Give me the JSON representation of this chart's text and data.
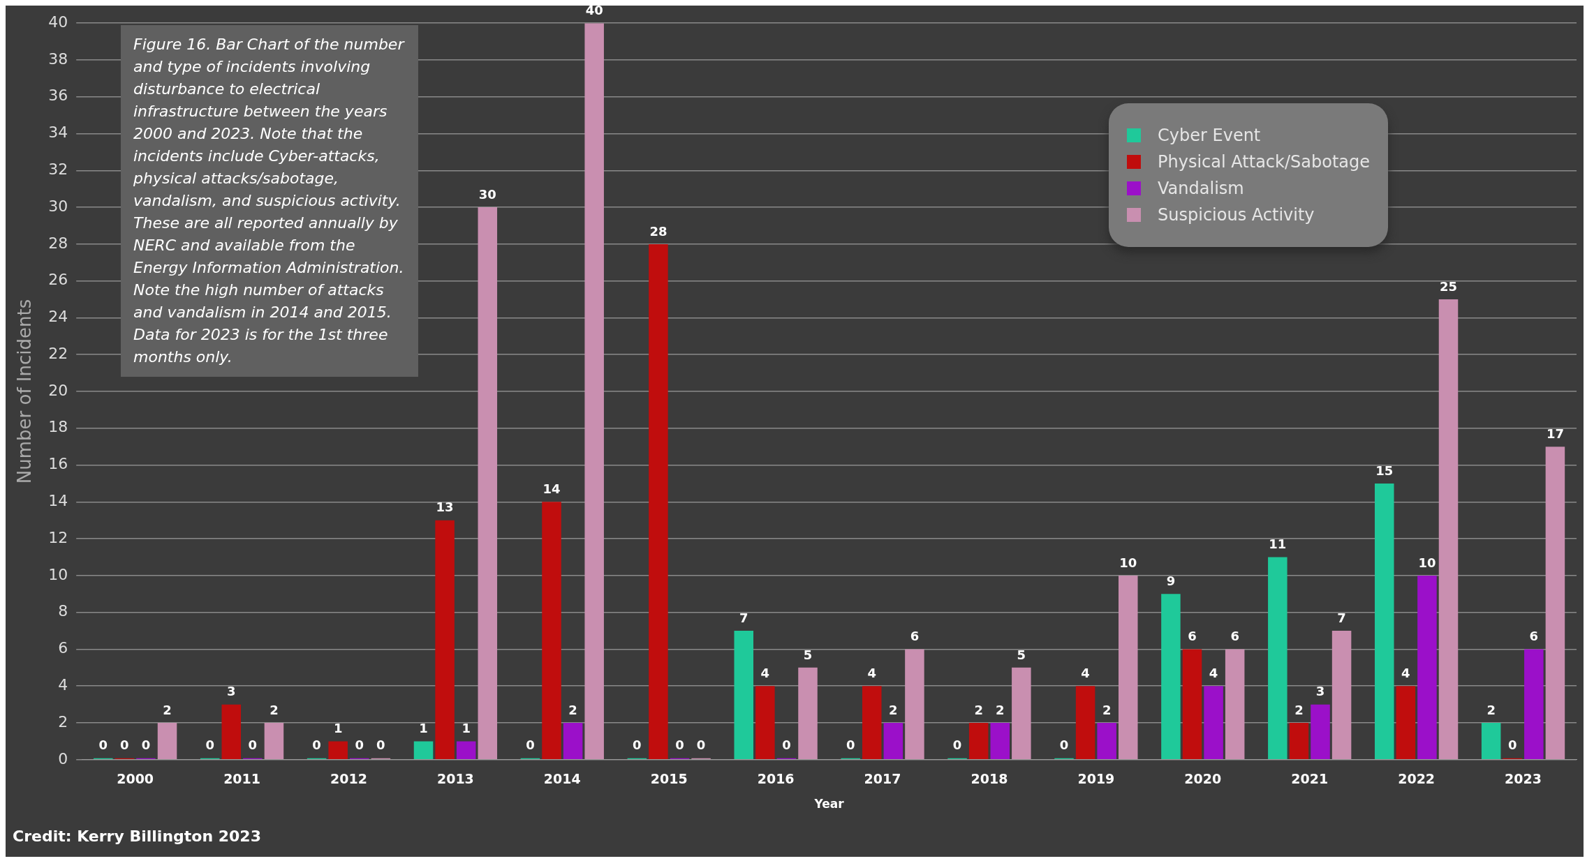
{
  "chart_data": {
    "type": "bar",
    "xlabel": "Year",
    "ylabel": "Number of Incidents",
    "categories": [
      "2000",
      "2011",
      "2012",
      "2013",
      "2014",
      "2015",
      "2016",
      "2017",
      "2018",
      "2019",
      "2020",
      "2021",
      "2022",
      "2023"
    ],
    "series": [
      {
        "name": "Cyber Event",
        "color": "#1fc99a",
        "values": [
          0,
          0,
          0,
          1,
          0,
          0,
          7,
          0,
          0,
          0,
          9,
          11,
          15,
          2
        ]
      },
      {
        "name": "Physical Attack/Sabotage",
        "color": "#c00d0d",
        "values": [
          0,
          3,
          1,
          13,
          14,
          28,
          4,
          4,
          2,
          4,
          6,
          2,
          4,
          0
        ]
      },
      {
        "name": "Vandalism",
        "color": "#9b10c9",
        "values": [
          0,
          0,
          0,
          1,
          2,
          0,
          0,
          2,
          2,
          2,
          4,
          3,
          10,
          6
        ]
      },
      {
        "name": "Suspicious Activity",
        "color": "#c98fb0",
        "values": [
          2,
          2,
          0,
          30,
          40,
          0,
          5,
          6,
          5,
          10,
          6,
          7,
          25,
          17
        ]
      }
    ],
    "ylim": [
      0,
      40
    ],
    "yticks": [
      0,
      2,
      4,
      6,
      8,
      10,
      12,
      14,
      16,
      18,
      20,
      22,
      24,
      26,
      28,
      30,
      32,
      34,
      36,
      38,
      40
    ],
    "grid": "y",
    "legend": "top right",
    "data_labels": true,
    "annotations": [
      "Figure 16. Bar Chart of the number and type of incidents involving disturbance to electrical infrastructure between the years 2000 and 2023. Note that the incidents include Cyber-attacks, physical attacks/sabotage, vandalism, and suspicious activity. These are all reported annually by NERC and available from the Energy Information Administration. Note the high number of attacks and vandalism in 2014 and 2015. Data for 2023 is for the 1st three months only.",
      "Credit: Kerry Billington 2023"
    ]
  }
}
